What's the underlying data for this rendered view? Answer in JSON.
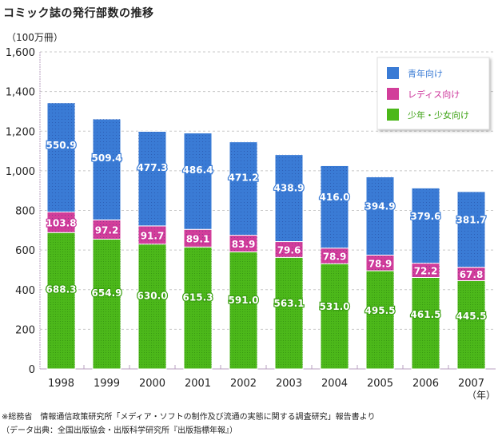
{
  "page": {
    "title": "コミック誌の発行部数の推移",
    "unit_label": "（100万冊）",
    "x_unit_label": "（年）",
    "footnotes": [
      "※総務省　情報通信政策研究所「メディア・ソフトの制作及び流通の実態に関する調査研究」報告書より",
      "（データ出典：全国出版協会・出版科学研究所『出版指標年報』）"
    ]
  },
  "chart_data": {
    "type": "bar",
    "stacked": true,
    "title": "コミック誌の発行部数の推移",
    "ylabel": "（100万冊）",
    "xlabel": "（年）",
    "ylim": [
      0,
      1600
    ],
    "yticks": [
      0,
      200,
      400,
      600,
      800,
      1000,
      1200,
      1400,
      1600
    ],
    "ytick_labels": [
      "0",
      "200",
      "400",
      "600",
      "800",
      "1,000",
      "1,200",
      "1,400",
      "1,600"
    ],
    "grid": true,
    "legend_position": "top-right",
    "categories": [
      "1998",
      "1999",
      "2000",
      "2001",
      "2002",
      "2003",
      "2004",
      "2005",
      "2006",
      "2007"
    ],
    "series": [
      {
        "name": "少年・少女向け",
        "color": "#4cb81a",
        "text_color": "#3aa010",
        "values": [
          688.3,
          654.9,
          630.0,
          615.3,
          591.0,
          563.1,
          531.0,
          495.5,
          461.5,
          445.5
        ]
      },
      {
        "name": "レディス向け",
        "color": "#d23e9a",
        "text_color": "#cc3399",
        "values": [
          103.8,
          97.2,
          91.7,
          89.1,
          83.9,
          79.6,
          78.9,
          78.9,
          72.2,
          67.8
        ]
      },
      {
        "name": "青年向け",
        "color": "#3a7bd5",
        "text_color": "#3a7bd5",
        "values": [
          550.9,
          509.4,
          477.3,
          486.4,
          471.2,
          438.9,
          416.0,
          394.9,
          379.6,
          381.7
        ]
      }
    ],
    "legend_order": [
      "青年向け",
      "レディス向け",
      "少年・少女向け"
    ]
  }
}
